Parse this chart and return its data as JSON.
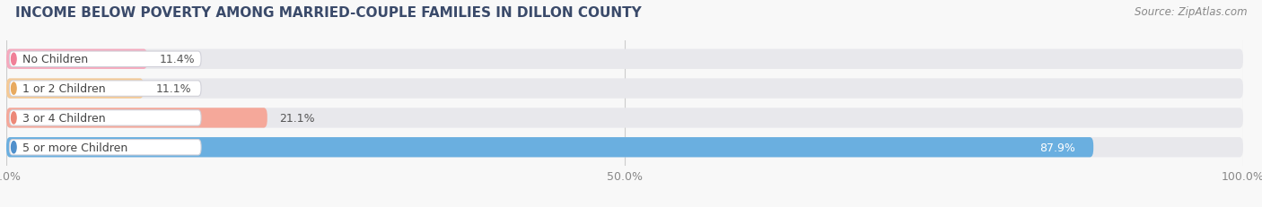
{
  "title": "INCOME BELOW POVERTY AMONG MARRIED-COUPLE FAMILIES IN DILLON COUNTY",
  "source": "Source: ZipAtlas.com",
  "categories": [
    "No Children",
    "1 or 2 Children",
    "3 or 4 Children",
    "5 or more Children"
  ],
  "values": [
    11.4,
    11.1,
    21.1,
    87.9
  ],
  "bar_colors": [
    "#f5aabe",
    "#f5ca96",
    "#f5a89a",
    "#6aafe0"
  ],
  "label_dot_colors": [
    "#f08098",
    "#e8aa60",
    "#ec8878",
    "#5090cc"
  ],
  "bg_bar_color": "#e8e8ec",
  "xlim": [
    0,
    100
  ],
  "xticks": [
    0.0,
    50.0,
    100.0
  ],
  "xtick_labels": [
    "0.0%",
    "50.0%",
    "100.0%"
  ],
  "value_labels": [
    "11.4%",
    "11.1%",
    "21.1%",
    "87.9%"
  ],
  "bar_height": 0.68,
  "background_color": "#f8f8f8",
  "title_color": "#3a4a6a",
  "source_color": "#888888"
}
